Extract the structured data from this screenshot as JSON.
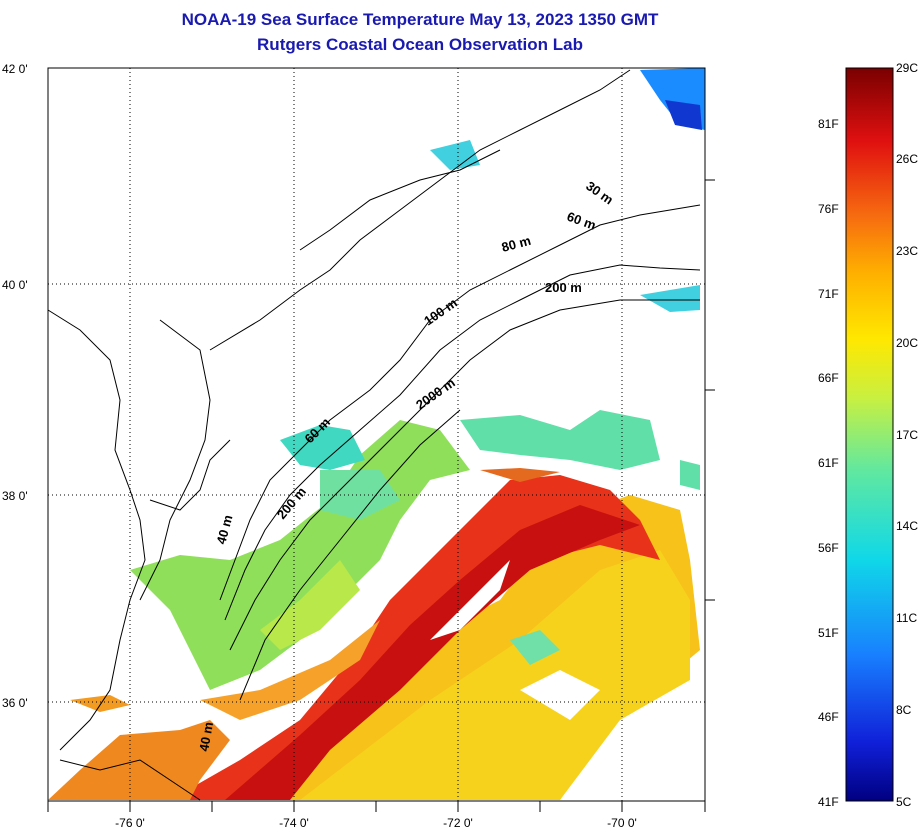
{
  "title": {
    "line1": "NOAA-19 Sea Surface Temperature May 13, 2023 1350 GMT",
    "line2": "Rutgers Coastal Ocean Observation Lab"
  },
  "map": {
    "lat_labels": [
      "42 0'",
      "40 0'",
      "38 0'",
      "36 0'"
    ],
    "lon_labels": [
      "-76 0'",
      "-74 0'",
      "-72 0'",
      "-70 0'"
    ],
    "contour_labels": [
      "30 m",
      "60 m",
      "80 m",
      "200 m",
      "100 m",
      "2000 m",
      "60 m",
      "200 m",
      "40 m",
      "40 m"
    ]
  },
  "colorbar": {
    "fahrenheit": [
      "81F",
      "76F",
      "71F",
      "66F",
      "61F",
      "56F",
      "51F",
      "46F",
      "41F"
    ],
    "celsius": [
      "29C",
      "26C",
      "23C",
      "20C",
      "17C",
      "14C",
      "11C",
      "8C",
      "5C"
    ],
    "colors": [
      "#7a0000",
      "#c00000",
      "#f03010",
      "#f68a10",
      "#ffd400",
      "#e6f020",
      "#a0e850",
      "#40e0b0",
      "#10d8e8",
      "#1880ff",
      "#1020d8",
      "#000080"
    ]
  }
}
